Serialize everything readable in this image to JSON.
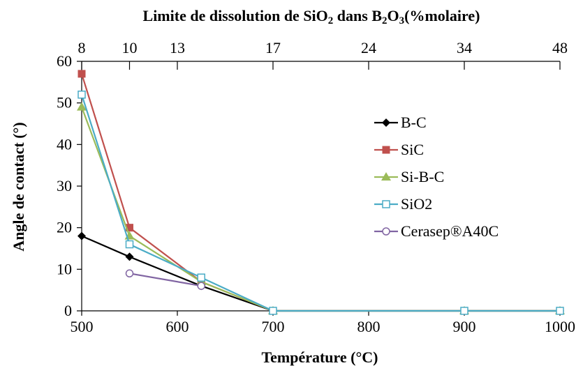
{
  "chart_data": {
    "type": "line",
    "title": "",
    "xlabel": "Température (°C)",
    "ylabel": "Angle de contact (°)",
    "xlim": [
      500,
      1000
    ],
    "ylim": [
      0,
      60
    ],
    "x_ticks": [
      "500",
      "600",
      "700",
      "800",
      "900",
      "1000"
    ],
    "y_ticks": [
      "0",
      "10",
      "20",
      "30",
      "40",
      "50",
      "60"
    ],
    "top_axis": {
      "title_parts": [
        "Limite de dissolution de SiO",
        "2",
        " dans B",
        "2",
        "O",
        "3",
        "(%molaire)"
      ],
      "ticks": [
        {
          "x": 500,
          "label": "8"
        },
        {
          "x": 550,
          "label": "10"
        },
        {
          "x": 600,
          "label": "13"
        },
        {
          "x": 700,
          "label": "17"
        },
        {
          "x": 800,
          "label": "24"
        },
        {
          "x": 900,
          "label": "34"
        },
        {
          "x": 1000,
          "label": "48"
        }
      ]
    },
    "grid": false,
    "legend_position": "right",
    "series": [
      {
        "name": "B-C",
        "color": "#000000",
        "marker": "diamond",
        "x": [
          500,
          550,
          625,
          700,
          900,
          1000
        ],
        "y": [
          18,
          13,
          6,
          0,
          0,
          0
        ]
      },
      {
        "name": "SiC",
        "color": "#C0504D",
        "marker": "square",
        "x": [
          500,
          550,
          625,
          700,
          900,
          1000
        ],
        "y": [
          57,
          20,
          7,
          0,
          0,
          0
        ]
      },
      {
        "name": "Si-B-C",
        "color": "#9BBB59",
        "marker": "triangle",
        "x": [
          500,
          550,
          625,
          700,
          900,
          1000
        ],
        "y": [
          49,
          18,
          7,
          0,
          0,
          0
        ]
      },
      {
        "name": "SiO2",
        "color": "#4BACC6",
        "marker": "square-open",
        "x": [
          500,
          550,
          625,
          700,
          900,
          1000
        ],
        "y": [
          52,
          16,
          8,
          0,
          0,
          0
        ]
      },
      {
        "name": "Cerasep®A40C",
        "color": "#8064A2",
        "marker": "circle-open",
        "x": [
          550,
          625
        ],
        "y": [
          9,
          6
        ]
      }
    ]
  }
}
